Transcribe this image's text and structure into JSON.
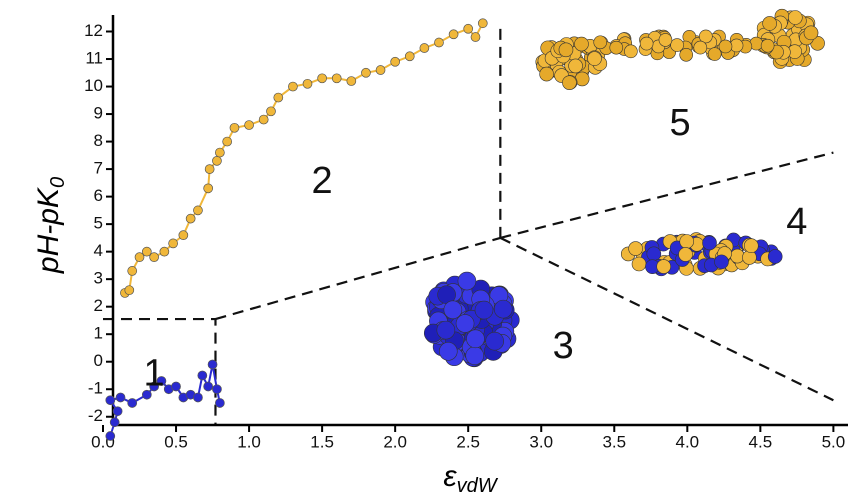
{
  "chart_data": {
    "type": "scatter",
    "x_label": "ε",
    "x_label_sub": "vdW",
    "y_label": "pH-pK",
    "y_label_sub": "0",
    "xlim": [
      0,
      5.1
    ],
    "ylim": [
      -2.3,
      12.6
    ],
    "xticks": [
      {
        "value": 0,
        "label": "0.0"
      },
      0.5,
      {
        "value": 1,
        "label": "1.0"
      },
      1.5,
      {
        "value": 2,
        "label": "2.0"
      },
      2.5,
      {
        "value": 3,
        "label": "3.0"
      },
      3.5,
      {
        "value": 4,
        "label": "4.0"
      },
      4.5,
      {
        "value": 5,
        "label": "5.0"
      }
    ],
    "yticks": [
      -2,
      -1,
      0,
      1,
      2,
      3,
      4,
      5,
      6,
      7,
      8,
      9,
      10,
      11,
      12
    ],
    "series": [
      {
        "color": "#f0b73a",
        "x": [
          0.15,
          0.18,
          0.2,
          0.25,
          0.3,
          0.35,
          0.42,
          0.48,
          0.55,
          0.6,
          0.65,
          0.72,
          0.73,
          0.78,
          0.8,
          0.85,
          0.9,
          1.0,
          1.1,
          1.15,
          1.2,
          1.3,
          1.4,
          1.5,
          1.6,
          1.7,
          1.8,
          1.9,
          2.0,
          2.1,
          2.2,
          2.3,
          2.4,
          2.5,
          2.55,
          2.6
        ],
        "values": [
          2.5,
          2.6,
          3.3,
          3.8,
          4.0,
          3.8,
          4.0,
          4.3,
          4.6,
          5.2,
          5.5,
          6.3,
          7.0,
          7.3,
          7.6,
          8.0,
          8.5,
          8.6,
          8.8,
          9.1,
          9.6,
          10.0,
          10.1,
          10.3,
          10.3,
          10.2,
          10.5,
          10.6,
          10.9,
          11.1,
          11.4,
          11.6,
          11.9,
          12.1,
          11.8,
          12.3
        ]
      },
      {
        "color": "#2a2ad0",
        "x": [
          0.05,
          0.08,
          0.1,
          0.05,
          0.12,
          0.2,
          0.3,
          0.35,
          0.4,
          0.45,
          0.5,
          0.55,
          0.6,
          0.65,
          0.68,
          0.72,
          0.75,
          0.78,
          0.8
        ],
        "values": [
          -2.7,
          -2.2,
          -1.8,
          -1.4,
          -1.3,
          -1.5,
          -1.2,
          -0.9,
          -0.7,
          -1.0,
          -0.9,
          -1.3,
          -1.2,
          -1.3,
          -0.5,
          -0.9,
          -0.1,
          -1.0,
          -1.5
        ]
      }
    ],
    "boundaries": [
      {
        "x": [
          0,
          0.77,
          0.77
        ],
        "y": [
          1.55,
          1.55,
          -2.3
        ]
      },
      {
        "x": [
          0.77,
          2.72
        ],
        "y": [
          1.55,
          4.5
        ]
      },
      {
        "x": [
          2.72,
          2.72
        ],
        "y": [
          4.5,
          12.3
        ]
      },
      {
        "x": [
          2.72,
          5.0
        ],
        "y": [
          4.5,
          7.6
        ]
      },
      {
        "x": [
          2.72,
          5.0
        ],
        "y": [
          4.5,
          -1.4
        ]
      }
    ],
    "annotations": [
      {
        "text": "1",
        "x": 0.35,
        "y": -0.5
      },
      {
        "text": "2",
        "x": 1.5,
        "y": 6.5
      },
      {
        "text": "3",
        "x": 3.15,
        "y": 0.5
      },
      {
        "text": "4",
        "x": 4.75,
        "y": 5.0
      },
      {
        "text": "5",
        "x": 3.95,
        "y": 8.6
      }
    ]
  }
}
